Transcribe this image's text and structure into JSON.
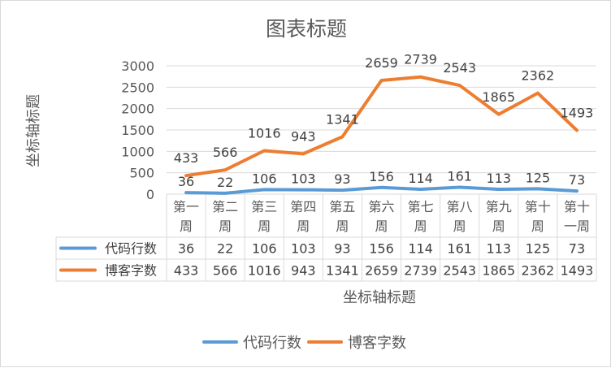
{
  "chart_data": {
    "type": "line",
    "title": "图表标题",
    "xlabel": "坐标轴标题",
    "ylabel": "坐标轴标题",
    "ylim": [
      0,
      3000
    ],
    "yticks": [
      0,
      500,
      1000,
      1500,
      2000,
      2500,
      3000
    ],
    "categories": [
      [
        "第一",
        "周"
      ],
      [
        "第二",
        "周"
      ],
      [
        "第三",
        "周"
      ],
      [
        "第四",
        "周"
      ],
      [
        "第五",
        "周"
      ],
      [
        "第六",
        "周"
      ],
      [
        "第七",
        "周"
      ],
      [
        "第八",
        "周"
      ],
      [
        "第九",
        "周"
      ],
      [
        "第十",
        "周"
      ],
      [
        "第十",
        "一周"
      ]
    ],
    "series": [
      {
        "name": "代码行数",
        "color": "#5b9bd5",
        "values": [
          36,
          22,
          106,
          103,
          93,
          156,
          114,
          161,
          113,
          125,
          73
        ]
      },
      {
        "name": "博客字数",
        "color": "#ed7d31",
        "values": [
          433,
          566,
          1016,
          943,
          1341,
          2659,
          2739,
          2543,
          1865,
          2362,
          1493
        ]
      }
    ],
    "grid": true,
    "legend": "bottom",
    "data_table": true
  }
}
